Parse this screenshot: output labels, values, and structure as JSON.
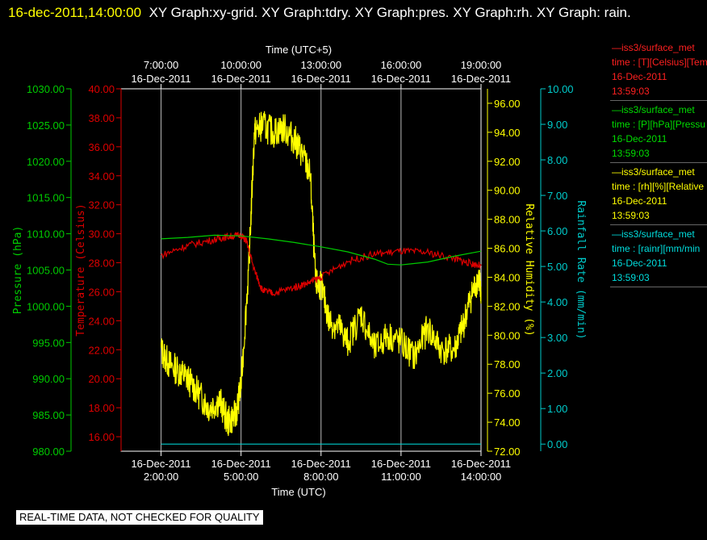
{
  "title": {
    "timestamp": "16-dec-2011,14:00:00",
    "rest": "XY Graph:xy-grid.  XY Graph:tdry.  XY Graph:pres.  XY Graph:rh.  XY Graph: rain."
  },
  "chart_data": {
    "type": "line",
    "x_top_label": "Time (UTC+5)",
    "x_bottom_label": "Time (UTC)",
    "x_range_hours_utc": [
      0.5,
      14.0
    ],
    "x_top_ticks": [
      {
        "time": "7:00:00",
        "date": "16-Dec-2011"
      },
      {
        "time": "10:00:00",
        "date": "16-Dec-2011"
      },
      {
        "time": "13:00:00",
        "date": "16-Dec-2011"
      },
      {
        "time": "16:00:00",
        "date": "16-Dec-2011"
      },
      {
        "time": "19:00:00",
        "date": "16-Dec-2011"
      }
    ],
    "x_bottom_ticks": [
      {
        "time": "2:00:00",
        "date": "16-Dec-2011"
      },
      {
        "time": "5:00:00",
        "date": "16-Dec-2011"
      },
      {
        "time": "8:00:00",
        "date": "16-Dec-2011"
      },
      {
        "time": "11:00:00",
        "date": "16-Dec-2011"
      },
      {
        "time": "14:00:00",
        "date": "16-Dec-2011"
      }
    ],
    "grid": true,
    "axes": {
      "pressure": {
        "label": "Pressure (hPa)",
        "range": [
          980,
          1030
        ],
        "color": "#00cc00",
        "ticks": [
          "980.00",
          "985.00",
          "990.00",
          "995.00",
          "1000.00",
          "1005.00",
          "1010.00",
          "1015.00",
          "1020.00",
          "1025.00",
          "1030.00"
        ]
      },
      "temperature": {
        "label": "Temperature (Celsius)",
        "range": [
          15,
          40
        ],
        "color": "#dd0000",
        "ticks": [
          "16.00",
          "18.00",
          "20.00",
          "22.00",
          "24.00",
          "26.00",
          "28.00",
          "30.00",
          "32.00",
          "34.00",
          "36.00",
          "38.00",
          "40.00"
        ]
      },
      "humidity": {
        "label": "Relative Humidity (%)",
        "range": [
          72,
          97
        ],
        "color": "#ffff00",
        "ticks": [
          "72.00",
          "74.00",
          "76.00",
          "78.00",
          "80.00",
          "82.00",
          "84.00",
          "86.00",
          "88.00",
          "90.00",
          "92.00",
          "94.00",
          "96.00"
        ]
      },
      "rain": {
        "label": "Rainfall Rate (mm/min)",
        "range": [
          -0.2,
          10
        ],
        "color": "#00cccc",
        "ticks": [
          "0.00",
          "1.00",
          "2.00",
          "3.00",
          "4.00",
          "5.00",
          "6.00",
          "7.00",
          "8.00",
          "9.00",
          "10.00"
        ]
      }
    },
    "series": [
      {
        "name": "rh",
        "axis": "humidity",
        "color": "#ffff00",
        "x": [
          2.0,
          2.3,
          2.7,
          3.0,
          3.4,
          3.8,
          4.2,
          4.5,
          4.8,
          5.0,
          5.3,
          5.5,
          5.8,
          6.2,
          6.6,
          7.0,
          7.3,
          7.6,
          7.8,
          8.0,
          8.3,
          8.7,
          9.0,
          9.5,
          10.0,
          10.5,
          11.0,
          11.5,
          12.0,
          12.5,
          13.0,
          13.3,
          13.6,
          13.9,
          14.0
        ],
        "y": [
          79.0,
          78.0,
          77.5,
          77.0,
          76.0,
          75.0,
          75.5,
          74.0,
          74.5,
          76.5,
          85.0,
          94.0,
          94.5,
          94.0,
          94.3,
          93.5,
          92.5,
          91.0,
          83.5,
          83.5,
          81.0,
          80.5,
          79.5,
          81.5,
          79.0,
          80.0,
          79.5,
          78.5,
          80.5,
          79.0,
          79.0,
          80.5,
          82.5,
          84.0,
          83.0
        ]
      },
      {
        "name": "tdry",
        "axis": "temperature",
        "color": "#dd0000",
        "x": [
          2.0,
          3.0,
          4.0,
          4.5,
          5.0,
          5.2,
          5.5,
          5.8,
          6.2,
          7.0,
          7.5,
          8.0,
          9.0,
          10.0,
          11.0,
          12.0,
          13.0,
          13.5,
          14.0
        ],
        "y": [
          28.5,
          29.2,
          29.6,
          29.8,
          29.9,
          29.5,
          27.5,
          26.1,
          25.9,
          26.3,
          26.6,
          27.0,
          28.1,
          28.6,
          28.8,
          28.7,
          28.3,
          28.0,
          27.8
        ]
      },
      {
        "name": "pres",
        "axis": "pressure",
        "color": "#00cc00",
        "x": [
          2.0,
          3.0,
          4.0,
          5.0,
          6.0,
          7.0,
          8.0,
          9.0,
          10.0,
          10.5,
          11.0,
          12.0,
          13.0,
          14.0
        ],
        "y": [
          1009.3,
          1009.5,
          1009.8,
          1009.7,
          1009.3,
          1008.8,
          1008.2,
          1007.5,
          1006.5,
          1005.8,
          1005.7,
          1006.1,
          1006.9,
          1007.6
        ]
      },
      {
        "name": "rain",
        "axis": "rain",
        "color": "#00cccc",
        "x": [
          2.0,
          14.0
        ],
        "y": [
          0.0,
          0.0
        ]
      }
    ]
  },
  "legend": [
    {
      "line1": "—iss3/surface_met",
      "line2": "time : [T][Celsius][Tem",
      "date": "16-Dec-2011",
      "time": "13:59:03",
      "color": "#ff2020"
    },
    {
      "line1": "—iss3/surface_met",
      "line2": "time : [P][hPa][Pressu",
      "date": "16-Dec-2011",
      "time": "13:59:03",
      "color": "#00dd00"
    },
    {
      "line1": "—iss3/surface_met",
      "line2": "time : [rh][%][Relative",
      "date": "16-Dec-2011",
      "time": "13:59:03",
      "color": "#ffff00"
    },
    {
      "line1": "—iss3/surface_met",
      "line2": "time : [rainr][mm/min",
      "date": "16-Dec-2011",
      "time": "13:59:03",
      "color": "#00dddd"
    }
  ],
  "footer_notice": "REAL-TIME DATA, NOT CHECKED FOR QUALITY"
}
